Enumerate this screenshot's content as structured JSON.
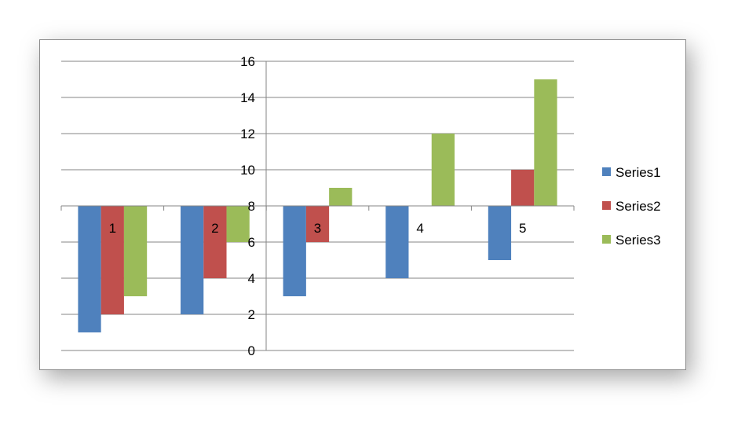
{
  "chart_data": {
    "type": "bar",
    "title": "",
    "xlabel": "",
    "ylabel": "",
    "categories": [
      "1",
      "2",
      "3",
      "4",
      "5"
    ],
    "ylim": [
      0,
      16
    ],
    "y_ticks": [
      "0",
      "2",
      "4",
      "6",
      "8",
      "10",
      "12",
      "14",
      "16"
    ],
    "category_axis_crosses_at": 8,
    "grid": true,
    "legend_position": "right",
    "series": [
      {
        "name": "Series1",
        "color": "#4f81bd",
        "values": [
          1,
          2,
          3,
          4,
          5
        ]
      },
      {
        "name": "Series2",
        "color": "#c0504d",
        "values": [
          2,
          4,
          6,
          8,
          10
        ]
      },
      {
        "name": "Series3",
        "color": "#9bbb59",
        "values": [
          3,
          6,
          9,
          12,
          15
        ]
      }
    ]
  }
}
